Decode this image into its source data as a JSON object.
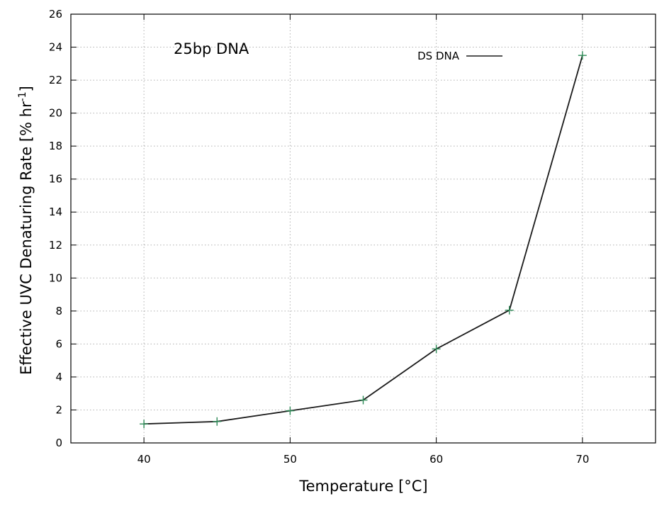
{
  "chart_data": {
    "type": "line",
    "title": "",
    "annotation": "25bp DNA",
    "xlabel": "Temperature [°C]",
    "ylabel_main": "Effective UVC Denaturing Rate [% hr",
    "ylabel_sup": "-1",
    "ylabel_end": "]",
    "xlim": [
      35,
      75
    ],
    "ylim": [
      0,
      26
    ],
    "x_ticks": [
      40,
      50,
      60,
      70
    ],
    "y_ticks": [
      0,
      2,
      4,
      6,
      8,
      10,
      12,
      14,
      16,
      18,
      20,
      22,
      24,
      26
    ],
    "grid": true,
    "legend_position": "top-right",
    "series": [
      {
        "name": "DS DNA",
        "x": [
          40,
          45,
          50,
          55,
          60,
          65,
          70
        ],
        "y": [
          1.15,
          1.3,
          1.95,
          2.6,
          5.7,
          8.05,
          23.5
        ],
        "line_color": "#1a1a1a",
        "marker_color": "#2e8b57",
        "marker": "plus"
      }
    ]
  }
}
